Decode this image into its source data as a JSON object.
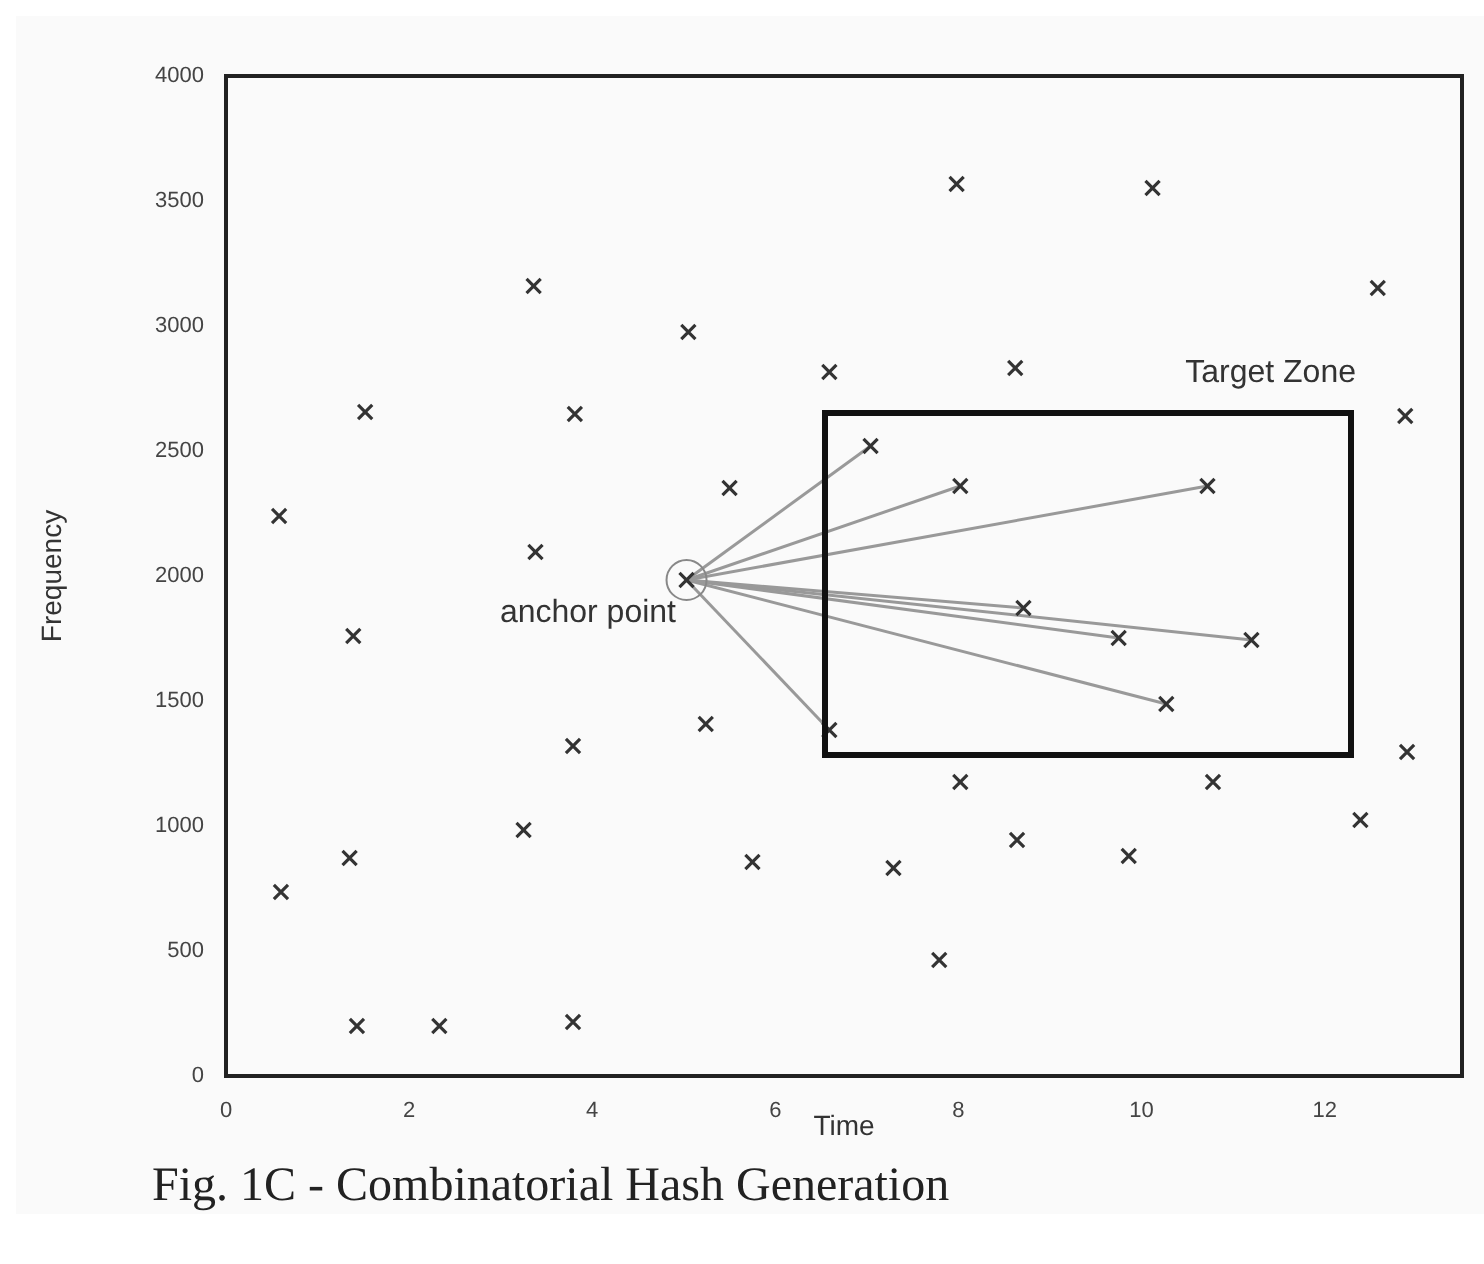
{
  "chart_data": {
    "type": "scatter",
    "title": "Fig. 1C - Combinatorial Hash Generation",
    "xlabel": "Time",
    "ylabel": "Frequency",
    "marker": "cross",
    "xlim": [
      0,
      13.5
    ],
    "ylim": [
      0,
      4000
    ],
    "xticks": [
      0,
      2,
      4,
      6,
      8,
      10,
      12
    ],
    "yticks": [
      0,
      500,
      1000,
      1500,
      2000,
      2500,
      3000,
      3500,
      4000
    ],
    "annotations": [
      "anchor point",
      "Target Zone"
    ],
    "series": [
      {
        "type": "scatter",
        "color": "#333333",
        "x": [
          0.58,
          1.52,
          1.39,
          1.35,
          0.6,
          1.43,
          2.33,
          3.36,
          3.38,
          3.81,
          3.25,
          3.79,
          3.79,
          5.05,
          5.5,
          5.03,
          5.24,
          5.75,
          6.59,
          7.04,
          8.02,
          7.98,
          10.12,
          8.62,
          10.72,
          12.58,
          12.88,
          8.71,
          9.75,
          11.2,
          10.27,
          6.59,
          8.02,
          10.78,
          7.29,
          8.64,
          9.86,
          12.39,
          12.9,
          7.79
        ],
        "values": [
          2240,
          2656,
          1760,
          872,
          736,
          200,
          200,
          3160,
          2096,
          2648,
          984,
          1320,
          216,
          2976,
          2352,
          1984,
          1408,
          856,
          2816,
          2520,
          2360,
          3568,
          3552,
          2832,
          2360,
          3152,
          2640,
          1872,
          1752,
          1744,
          1488,
          1384,
          1176,
          1176,
          832,
          944,
          880,
          1024,
          1296,
          464
        ]
      },
      {
        "type": "scatter",
        "marker": "circle",
        "color": "#888888",
        "x": [
          5.03
        ],
        "values": [
          1984
        ]
      },
      {
        "type": "line",
        "marker": "none",
        "color": "#999999",
        "x": [
          5.03,
          7.04
        ],
        "values": [
          1984,
          2520
        ]
      },
      {
        "type": "line",
        "marker": "none",
        "color": "#999999",
        "x": [
          5.03,
          8.02
        ],
        "values": [
          1984,
          2360
        ]
      },
      {
        "type": "line",
        "marker": "none",
        "color": "#999999",
        "x": [
          5.03,
          10.72
        ],
        "values": [
          1984,
          2360
        ]
      },
      {
        "type": "line",
        "marker": "none",
        "color": "#999999",
        "x": [
          5.03,
          8.71
        ],
        "values": [
          1984,
          1872
        ]
      },
      {
        "type": "line",
        "marker": "none",
        "color": "#999999",
        "x": [
          5.03,
          9.75
        ],
        "values": [
          1984,
          1752
        ]
      },
      {
        "type": "line",
        "marker": "none",
        "color": "#999999",
        "x": [
          5.03,
          11.2
        ],
        "values": [
          1984,
          1744
        ]
      },
      {
        "type": "line",
        "marker": "none",
        "color": "#999999",
        "x": [
          5.03,
          10.27
        ],
        "values": [
          1984,
          1488
        ]
      },
      {
        "type": "line",
        "marker": "none",
        "color": "#999999",
        "x": [
          5.03,
          6.59
        ],
        "values": [
          1984,
          1384
        ]
      }
    ]
  }
}
